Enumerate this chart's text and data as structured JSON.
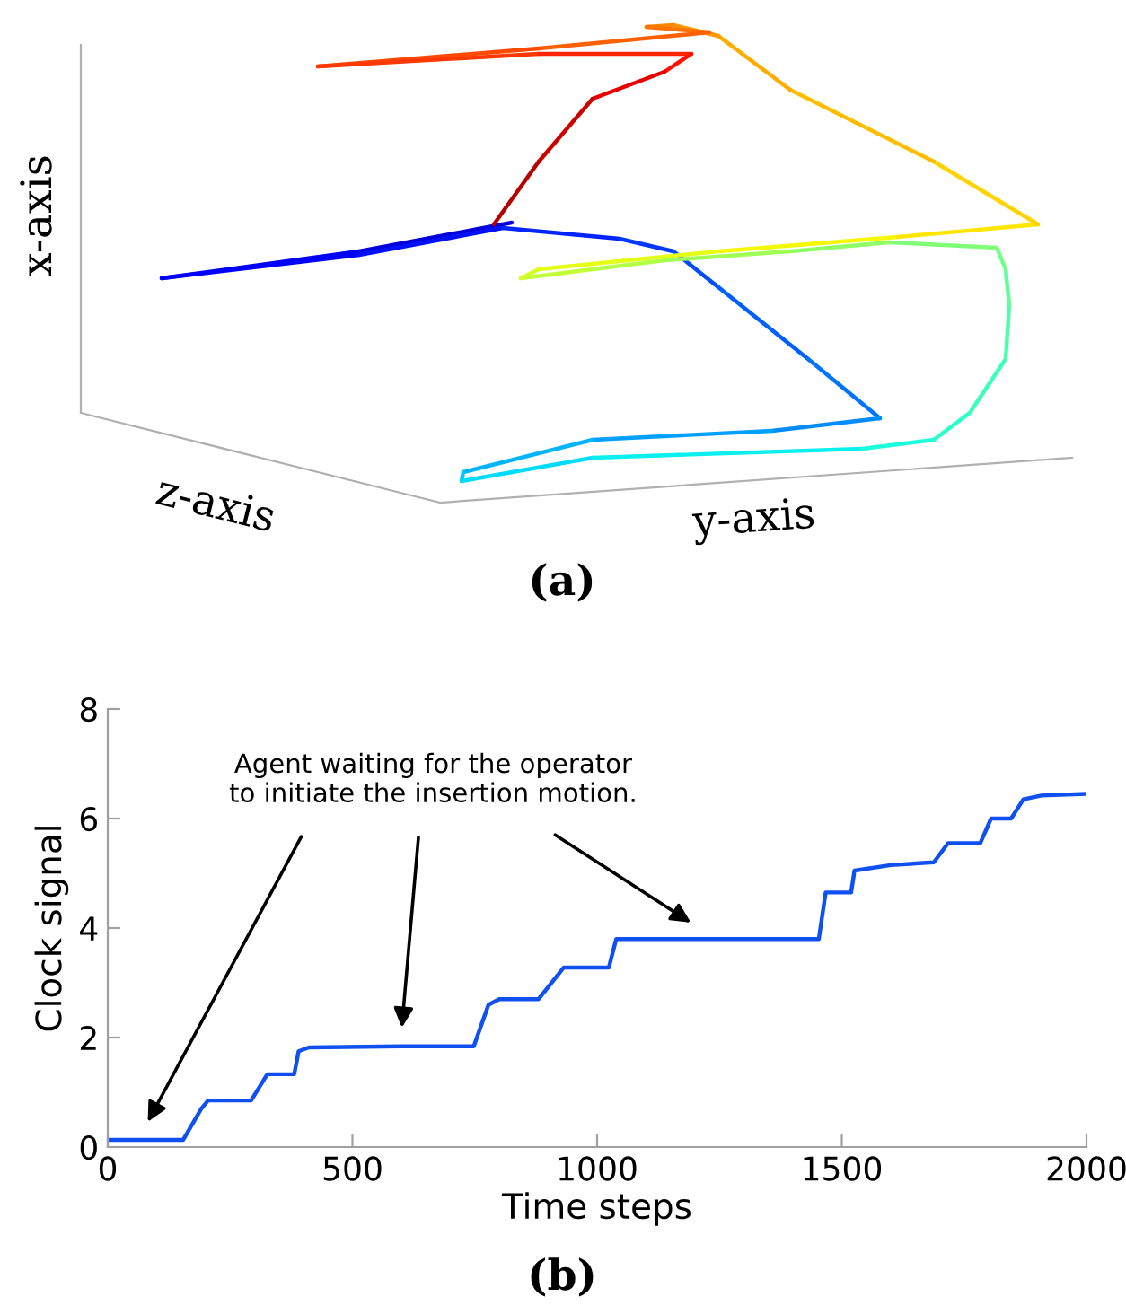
{
  "chart_data": [
    {
      "type": "other",
      "xlabel": "y-axis",
      "ylabel": "x-axis",
      "annotations": [
        "z-axis",
        "(a)"
      ]
    },
    {
      "type": "line",
      "xlabel": "Time steps",
      "ylabel": "Clock signal",
      "xlim": [
        0,
        2000
      ],
      "xticks": [
        0,
        500,
        1000,
        1500,
        2000
      ],
      "ylim": [
        0,
        8
      ],
      "yticks": [
        0,
        2,
        4,
        6,
        8
      ],
      "grid": false,
      "legend": false,
      "series": [
        {
          "x": [
            0,
            154,
            191,
            205,
            293,
            326,
            381,
            390,
            411,
            600,
            748,
            778,
            800,
            880,
            932,
            1024,
            1039,
            1200,
            1453,
            1467,
            1519,
            1526,
            1600,
            1688,
            1717,
            1783,
            1805,
            1846,
            1871,
            1908,
            2000
          ],
          "values": [
            0.13,
            0.13,
            0.7,
            0.85,
            0.85,
            1.33,
            1.33,
            1.75,
            1.82,
            1.84,
            1.84,
            2.6,
            2.7,
            2.7,
            3.28,
            3.28,
            3.8,
            3.8,
            3.8,
            4.65,
            4.65,
            5.05,
            5.15,
            5.2,
            5.55,
            5.55,
            6.0,
            6.0,
            6.35,
            6.42,
            6.45
          ],
          "color": "#1050f0"
        }
      ],
      "annotations": [
        "Agent waiting for the operator\nto initiate the insertion motion.",
        "(b)"
      ]
    }
  ]
}
